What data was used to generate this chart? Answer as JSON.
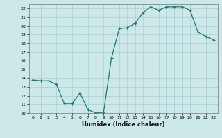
{
  "x": [
    0,
    1,
    2,
    3,
    4,
    5,
    6,
    7,
    8,
    9,
    10,
    11,
    12,
    13,
    14,
    15,
    16,
    17,
    18,
    19,
    20,
    21,
    22,
    23
  ],
  "y": [
    13.8,
    13.7,
    13.7,
    13.3,
    11.1,
    11.1,
    12.3,
    10.4,
    10.0,
    10.1,
    16.3,
    19.7,
    19.8,
    20.3,
    21.5,
    22.2,
    21.8,
    22.2,
    22.2,
    22.2,
    21.8,
    19.3,
    18.8,
    18.4
  ],
  "xlabel": "Humidex (Indice chaleur)",
  "line_color": "#1a7a6e",
  "marker_color": "#1a7a6e",
  "bg_color": "#cce8e8",
  "grid_color": "#aacfcf",
  "ylim": [
    10,
    22.5
  ],
  "xlim": [
    -0.5,
    23.5
  ],
  "yticks": [
    10,
    11,
    12,
    13,
    14,
    15,
    16,
    17,
    18,
    19,
    20,
    21,
    22
  ],
  "xticks": [
    0,
    1,
    2,
    3,
    4,
    5,
    6,
    7,
    8,
    9,
    10,
    11,
    12,
    13,
    14,
    15,
    16,
    17,
    18,
    19,
    20,
    21,
    22,
    23
  ]
}
